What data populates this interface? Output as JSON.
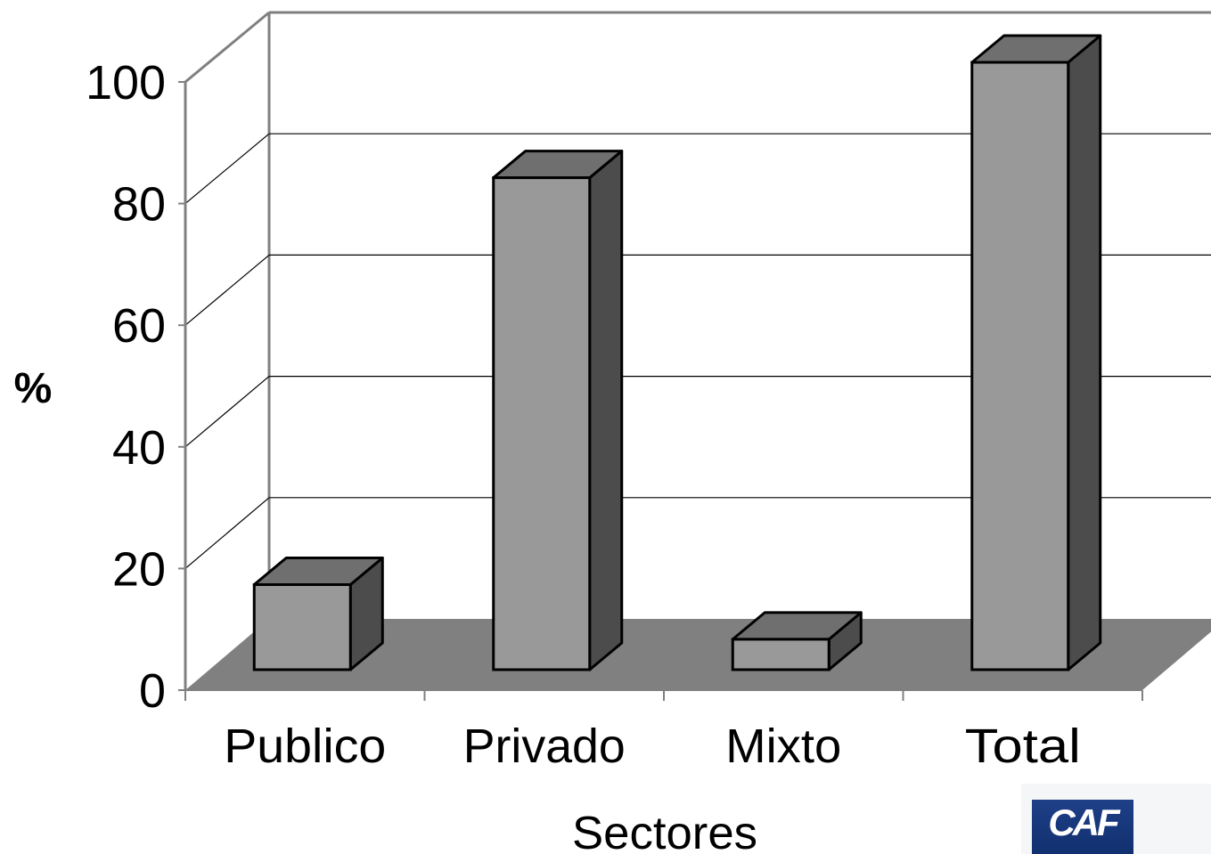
{
  "chart_data": {
    "type": "bar",
    "categories": [
      "Publico",
      "Privado",
      "Mixto",
      "Total"
    ],
    "values": [
      14,
      81,
      5,
      100
    ],
    "title": "",
    "xlabel": "Sectores",
    "ylabel": "%",
    "ylim": [
      0,
      100
    ],
    "yticks": [
      "0",
      "20",
      "40",
      "60",
      "80",
      "100"
    ],
    "grid": true,
    "style": "3d-column",
    "colors": {
      "bar_front": "#999999",
      "bar_top": "#6f6f6f",
      "bar_side": "#4c4c4c",
      "floor": "#808080",
      "axis": "#808080"
    }
  },
  "logo": {
    "text": "CAF"
  }
}
